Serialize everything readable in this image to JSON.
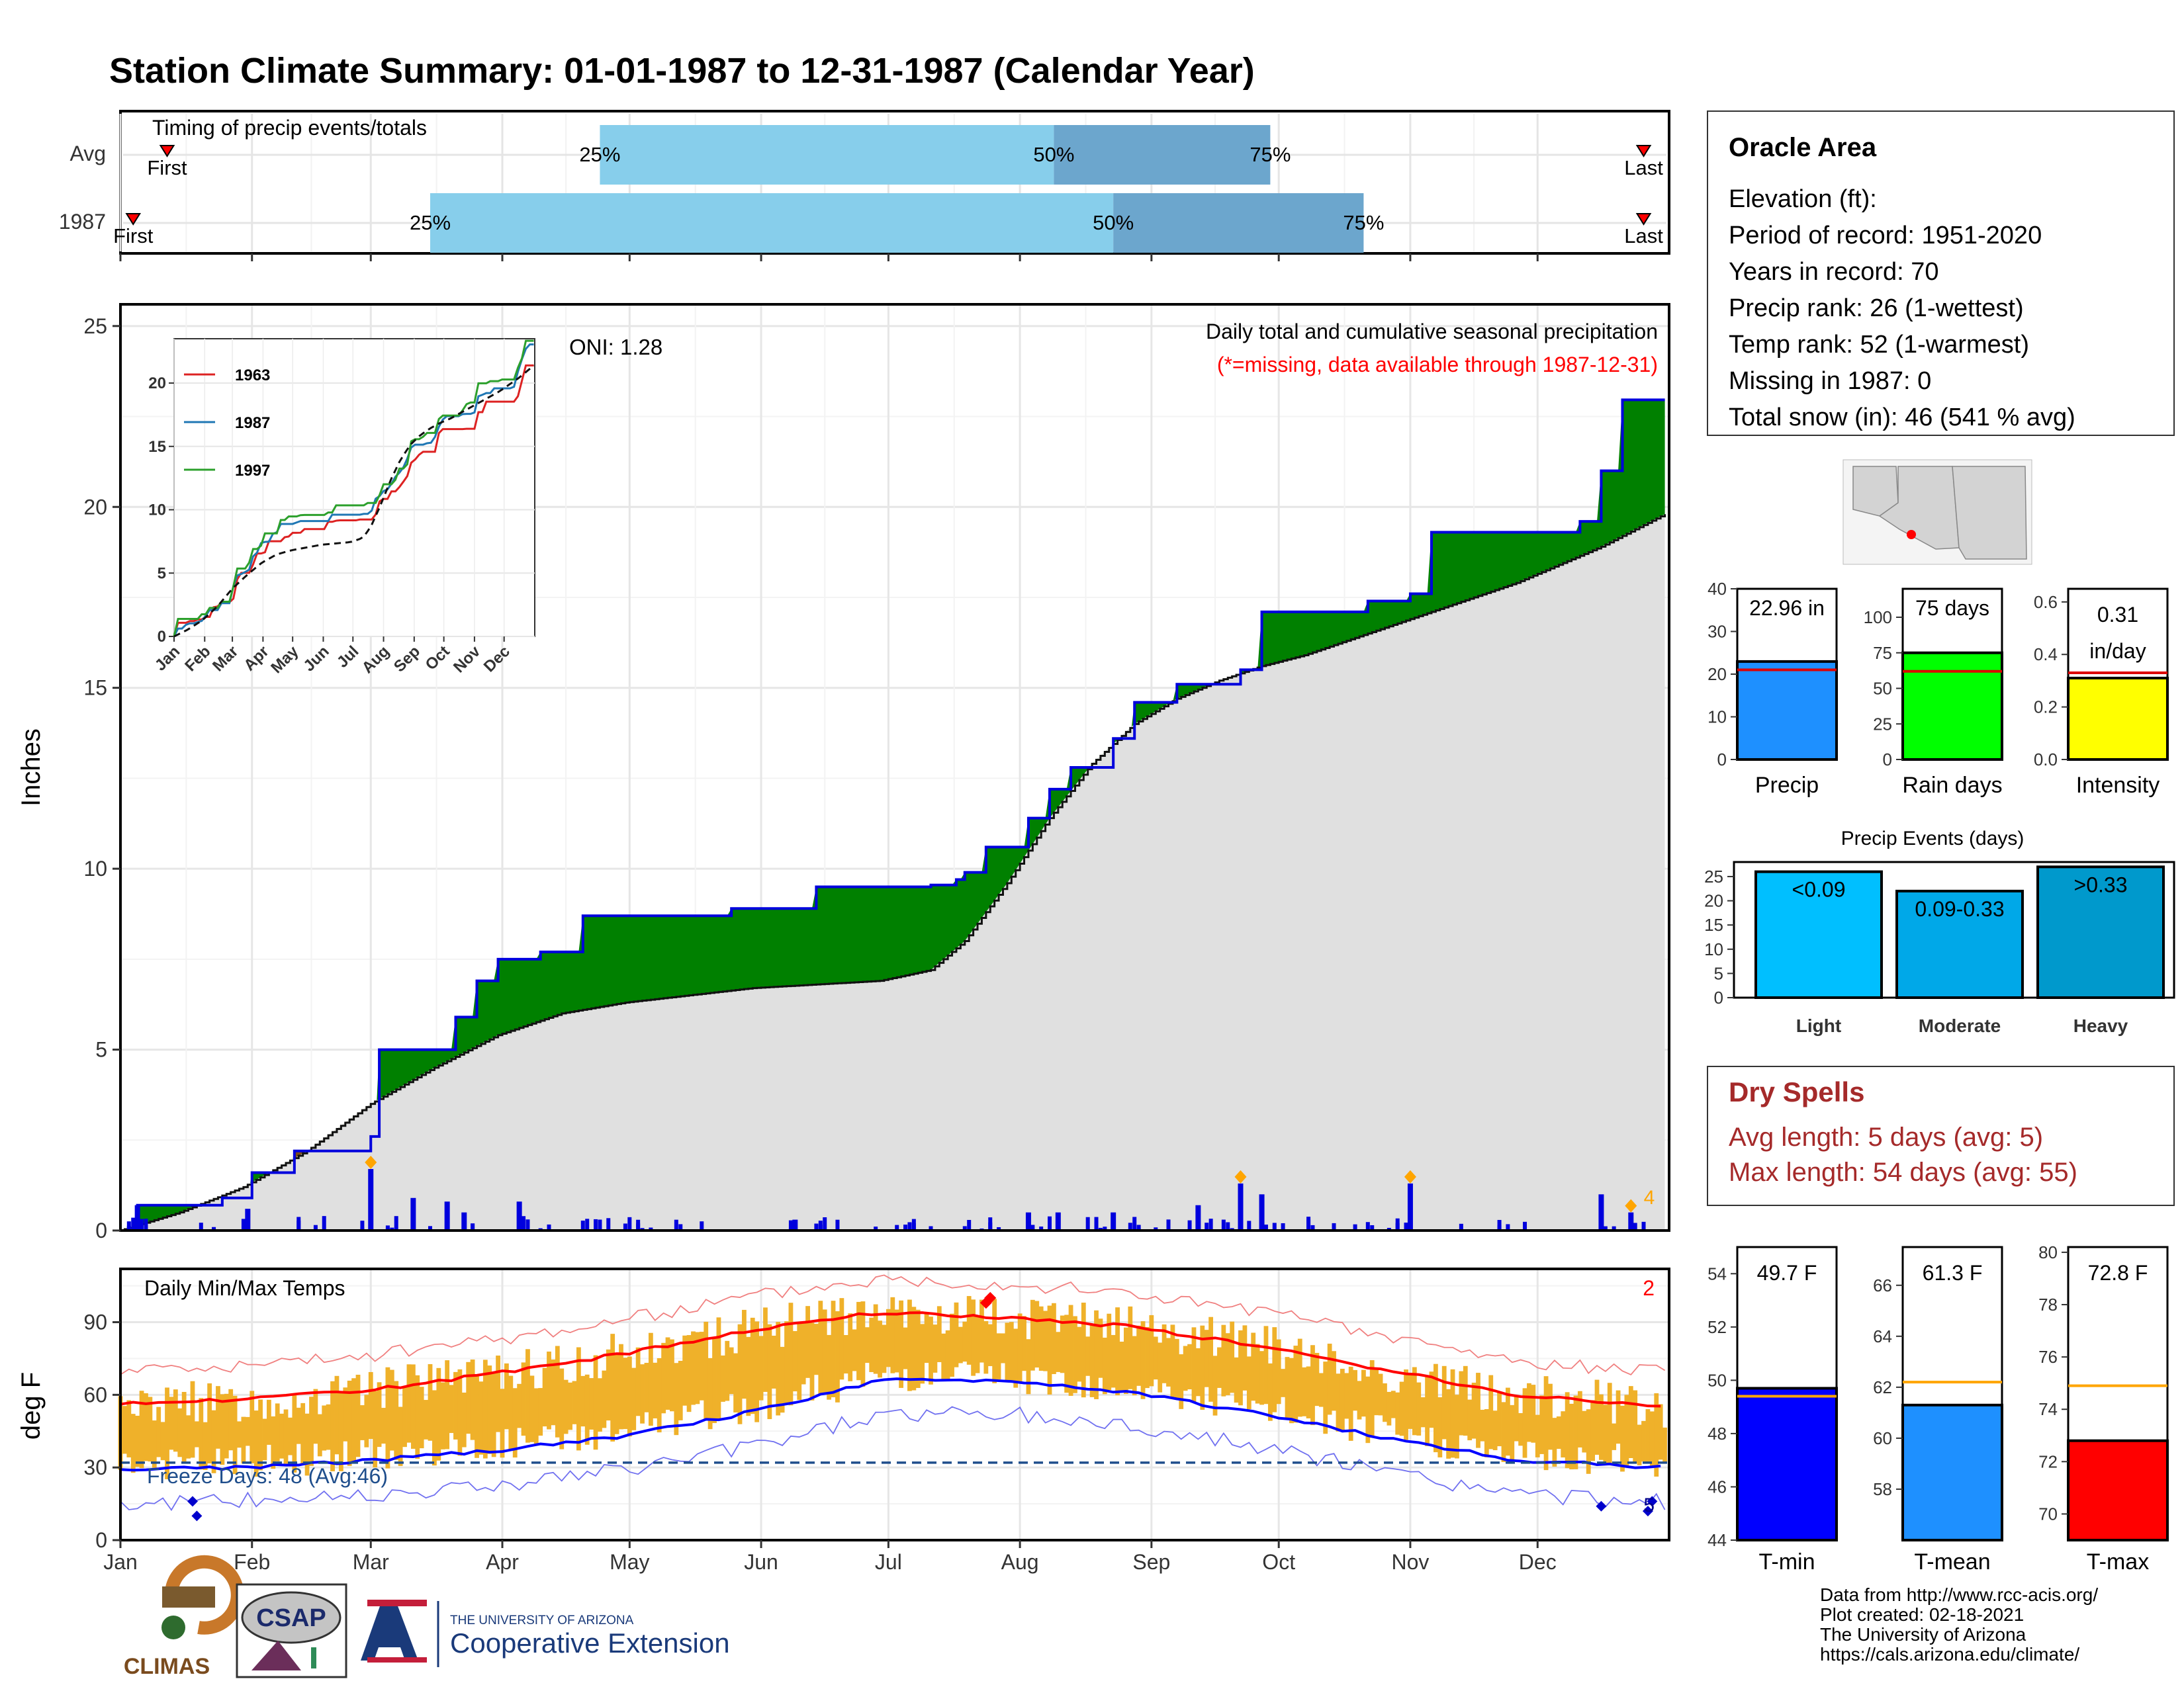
{
  "page_title": "Station Climate Summary: 01-01-1987 to 12-31-1987 (Calendar Year)",
  "colors": {
    "title_navy": "#0a0a78",
    "precip_green": "#008000",
    "precip_brown": "#7a4b1e",
    "avg_gray": "#e0e0e0",
    "line_blue": "#0000dd",
    "temp_orange": "#efb12a",
    "tmax_red": "#ff0000",
    "tmin_blue": "#0000ff",
    "light_blue": "#87ceeb",
    "mid_blue": "#6ca6cd",
    "dry_red": "#a52a2a",
    "marker_orange": "#ffa500"
  },
  "timing": {
    "title": "Timing of precip events/totals",
    "rows": [
      {
        "label": "Avg",
        "first_label": "First",
        "last_label": "Last",
        "first_day": 12,
        "last_day": 360,
        "p25_day": 114,
        "p50_day": 221,
        "p75_day": 272,
        "p25": "25%",
        "p50": "50%",
        "p75": "75%"
      },
      {
        "label": "1987",
        "first_label": "First",
        "last_label": "Last",
        "first_day": 4,
        "last_day": 360,
        "p25_day": 74,
        "p50_day": 235,
        "p75_day": 294,
        "p25": "25%",
        "p50": "50%",
        "p75": "75%"
      }
    ]
  },
  "precip": {
    "ylabel": "Inches",
    "oni": "ONI: 1.28",
    "note1": "Daily total and cumulative seasonal precipitation",
    "note2": "(*=missing, data available through 1987-12-31)",
    "yticks": [
      "0",
      "5",
      "10",
      "15",
      "20",
      "25"
    ],
    "corner_count": "4",
    "inset": {
      "legend": [
        "1963",
        "1987",
        "1997"
      ],
      "yticks": [
        "0",
        "5",
        "10",
        "15",
        "20"
      ],
      "months": [
        "Jan",
        "Feb",
        "Mar",
        "Apr",
        "May",
        "Jun",
        "Jul",
        "Aug",
        "Sep",
        "Oct",
        "Nov",
        "Dec"
      ]
    }
  },
  "temps": {
    "title": "Daily Min/Max Temps",
    "ylabel": "deg F",
    "yticks": [
      "0",
      "30",
      "60",
      "90"
    ],
    "freeze": "Freeze Days: 48 (Avg:46)",
    "record_high_count": "2",
    "record_low_count": "5"
  },
  "months": [
    "Jan",
    "Feb",
    "Mar",
    "Apr",
    "May",
    "Jun",
    "Jul",
    "Aug",
    "Sep",
    "Oct",
    "Nov",
    "Dec"
  ],
  "station": {
    "name": "Oracle Area",
    "lines": [
      "Elevation (ft):",
      "Period of record: 1951-2020",
      "Years in record: 70",
      "Precip rank: 26 (1-wettest)",
      "Temp rank: 52 (1-warmest)",
      "Missing in 1987: 0",
      "Total snow (in): 46 (541 % avg)"
    ]
  },
  "mini_bars": [
    {
      "label": "Precip",
      "value_text": "22.96 in",
      "value": 22.96,
      "avg": 21,
      "ymax": 40,
      "yticks": [
        "0",
        "10",
        "20",
        "30",
        "40"
      ],
      "color": "#1e90ff"
    },
    {
      "label": "Rain days",
      "value_text": "75 days",
      "value": 75,
      "avg": 62,
      "ymax": 120,
      "yticks": [
        "0",
        "25",
        "50",
        "75",
        "100"
      ],
      "color": "#00ff00"
    },
    {
      "label": "Intensity",
      "value_text": "0.31",
      "value_text2": "in/day",
      "value": 0.31,
      "avg": 0.33,
      "ymax": 0.65,
      "yticks": [
        "0.0",
        "0.2",
        "0.4",
        "0.6"
      ],
      "color": "#ffff00"
    }
  ],
  "events": {
    "title": "Precip Events (days)",
    "yticks": [
      "0",
      "5",
      "10",
      "15",
      "20",
      "25"
    ],
    "bars": [
      {
        "cat": "Light",
        "label": "<0.09",
        "value": 26,
        "color": "#00bfff"
      },
      {
        "cat": "Moderate",
        "label": "0.09-0.33",
        "value": 22,
        "color": "#00a8e8"
      },
      {
        "cat": "Heavy",
        "label": ">0.33",
        "value": 27,
        "color": "#0099cc"
      }
    ]
  },
  "dry_spells": {
    "title": "Dry Spells",
    "avg": "Avg length: 5 days (avg: 5)",
    "max": "Max length: 54 days (avg: 55)"
  },
  "temp_bars": [
    {
      "label": "T-min",
      "value_text": "49.7 F",
      "value": 49.7,
      "avg": 49.4,
      "ymin": 44,
      "ymax": 55,
      "yticks": [
        "44",
        "46",
        "48",
        "50",
        "52",
        "54"
      ],
      "color": "#0000ff"
    },
    {
      "label": "T-mean",
      "value_text": "61.3 F",
      "value": 61.3,
      "avg": 62.2,
      "ymin": 56,
      "ymax": 67.5,
      "yticks": [
        "58",
        "60",
        "62",
        "64",
        "66"
      ],
      "color": "#1e90ff"
    },
    {
      "label": "T-max",
      "value_text": "72.8 F",
      "value": 72.8,
      "avg": 74.9,
      "ymin": 69,
      "ymax": 80.2,
      "yticks": [
        "70",
        "72",
        "74",
        "76",
        "78",
        "80"
      ],
      "color": "#ff0000"
    }
  ],
  "footer": {
    "lines": [
      "Data from http://www.rcc-acis.org/",
      "Plot created: 02-18-2021",
      "The University of Arizona",
      "https://cals.arizona.edu/climate/"
    ],
    "logo_climas": "CLIMAS",
    "logo_csap": "CSAP",
    "ua_small": "THE UNIVERSITY OF ARIZONA",
    "ua_big": "Cooperative Extension"
  },
  "chart_data": {
    "type": "area",
    "title": "Station Climate Summary: 01-01-1987 to 12-31-1987 (Calendar Year)",
    "ylabel": "Inches",
    "ylim": [
      0,
      25
    ],
    "series": [
      {
        "name": "1987",
        "x": [
          1,
          5,
          12,
          25,
          32,
          42,
          60,
          62,
          75,
          80,
          85,
          90,
          95,
          100,
          110,
          145,
          150,
          165,
          179,
          192,
          198,
          200,
          205,
          215,
          220,
          225,
          235,
          240,
          250,
          265,
          270,
          275,
          295,
          305,
          310,
          320,
          335,
          345,
          350,
          355,
          365
        ],
        "y": [
          0,
          0.7,
          0.7,
          0.9,
          1.6,
          2.2,
          2.6,
          5.0,
          5.0,
          5.9,
          6.9,
          7.5,
          7.5,
          7.7,
          8.7,
          8.9,
          8.9,
          9.5,
          9.5,
          9.55,
          9.7,
          9.9,
          10.6,
          11.4,
          12.2,
          12.8,
          13.6,
          14.6,
          15.1,
          15.5,
          17.1,
          17.1,
          17.4,
          17.6,
          19.3,
          19.3,
          19.3,
          19.6,
          21.0,
          22.96,
          22.96
        ]
      },
      {
        "name": "Avg",
        "x": [
          1,
          15,
          30,
          45,
          60,
          75,
          90,
          105,
          120,
          135,
          150,
          165,
          180,
          192,
          200,
          210,
          220,
          230,
          240,
          250,
          260,
          270,
          280,
          290,
          300,
          310,
          320,
          330,
          340,
          350,
          365
        ],
        "y": [
          0,
          0.5,
          1.2,
          2.2,
          3.5,
          4.5,
          5.4,
          6.0,
          6.3,
          6.5,
          6.7,
          6.8,
          6.9,
          7.2,
          8.0,
          9.6,
          11.4,
          12.9,
          14.0,
          14.7,
          15.2,
          15.6,
          15.9,
          16.3,
          16.7,
          17.1,
          17.5,
          17.9,
          18.4,
          18.9,
          19.8
        ]
      }
    ],
    "daily_precip_events": [
      {
        "day": 5,
        "in": 0.7
      },
      {
        "day": 31,
        "in": 0.6
      },
      {
        "day": 60,
        "in": 1.7
      },
      {
        "day": 70,
        "in": 0.9
      },
      {
        "day": 78,
        "in": 0.8
      },
      {
        "day": 82,
        "in": 0.5
      },
      {
        "day": 95,
        "in": 0.8
      },
      {
        "day": 160,
        "in": 0.3
      },
      {
        "day": 215,
        "in": 0.5
      },
      {
        "day": 222,
        "in": 0.5
      },
      {
        "day": 235,
        "in": 0.5
      },
      {
        "day": 255,
        "in": 0.7
      },
      {
        "day": 265,
        "in": 1.3
      },
      {
        "day": 270,
        "in": 1.0
      },
      {
        "day": 305,
        "in": 1.3
      },
      {
        "day": 350,
        "in": 1.0
      },
      {
        "day": 357,
        "in": 0.5
      }
    ],
    "temps": {
      "ylabel": "deg F",
      "ylim": [
        0,
        110
      ],
      "freeze_line": 32,
      "avg_tmax": {
        "x": [
          1,
          30,
          60,
          90,
          120,
          150,
          180,
          210,
          240,
          270,
          300,
          330,
          365
        ],
        "y": [
          56,
          58,
          62,
          69,
          77,
          87,
          94,
          92,
          88,
          80,
          70,
          60,
          55
        ]
      },
      "avg_tmin": {
        "x": [
          1,
          30,
          60,
          90,
          120,
          150,
          180,
          210,
          240,
          270,
          300,
          330,
          365
        ],
        "y": [
          29,
          30,
          33,
          37,
          43,
          53,
          66,
          66,
          61,
          52,
          42,
          33,
          30
        ]
      }
    }
  }
}
